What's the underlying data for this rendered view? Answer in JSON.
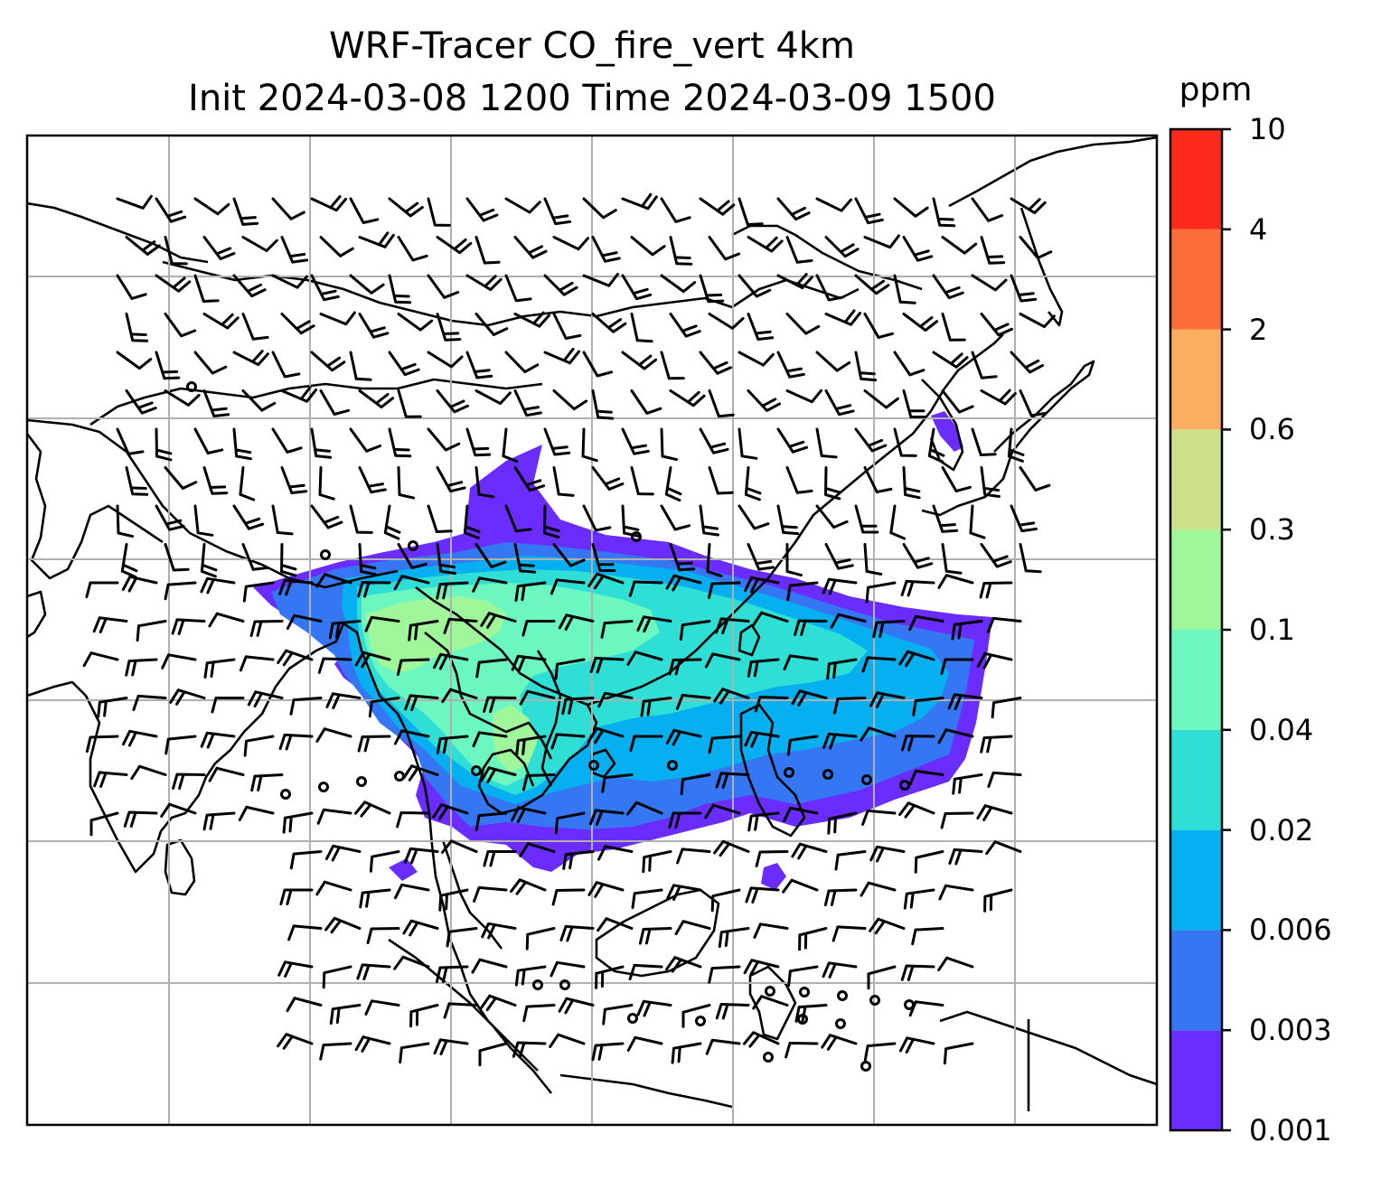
{
  "figure": {
    "title_line1": "WRF-Tracer CO_fire_vert 4km",
    "title_line2": "Init 2024-03-08 1200 Time 2024-03-09 1500"
  },
  "colorbar": {
    "unit": "ppm",
    "levels": [
      "0.001",
      "0.003",
      "0.006",
      "0.02",
      "0.04",
      "0.1",
      "0.3",
      "0.6",
      "2",
      "4",
      "10"
    ],
    "colors": [
      "#6a2cff",
      "#3576f2",
      "#05aff0",
      "#2fdfd5",
      "#6df7c0",
      "#9ff79a",
      "#cfe08a",
      "#fcae60",
      "#fb6e3a",
      "#fb2a1a"
    ]
  },
  "map": {
    "gridlines": true,
    "grid_color": "#b0b0b0",
    "coastline_color": "#000000",
    "wind_barbs": "black",
    "plume_levels_present": [
      "0.001",
      "0.003",
      "0.006",
      "0.02",
      "0.04",
      "0.1",
      "0.3"
    ]
  }
}
